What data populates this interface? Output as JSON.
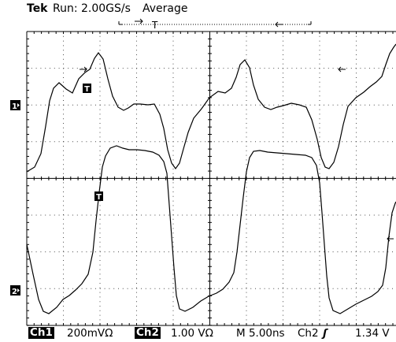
{
  "header": {
    "brand": "Tek",
    "run_status": "Run: 2.00GS/s",
    "acquisition_mode": "Average"
  },
  "channels": [
    {
      "marker": "1",
      "trigger_point_label": "T"
    },
    {
      "marker": "2",
      "trigger_point_label": "T"
    }
  ],
  "trigger_position": {
    "marker": "T"
  },
  "footer": {
    "ch1_label": "Ch1",
    "ch1_scale": "200mVΩ",
    "ch2_label": "Ch2",
    "ch2_scale": "1.00 VΩ",
    "timebase": "M 5.00ns",
    "trigger_source": "Ch2",
    "trigger_slope": "ʃ",
    "trigger_level": "1.34 V"
  },
  "colors": {
    "background": "#ffffff",
    "trace": "#000000",
    "grid": "#000000"
  }
}
